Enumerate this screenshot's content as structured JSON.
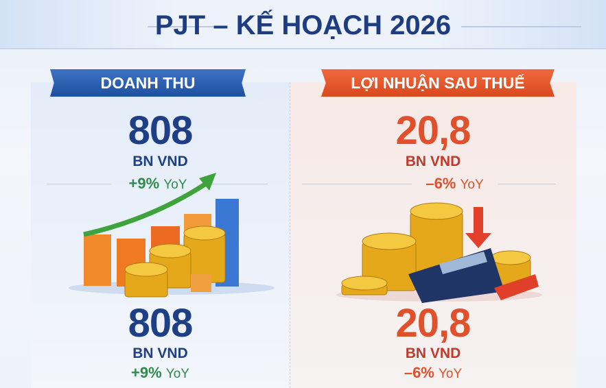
{
  "title": "PJT – KẾ HOẠCH 2026",
  "revenue": {
    "label": "DOANH THU",
    "value": "808",
    "unit": "BN VND",
    "change": "+9%",
    "change_suffix": "YoY",
    "color": "#1e3f86",
    "change_color": "#2f8a4d",
    "icon": "rising-bar-chart-coins"
  },
  "profit": {
    "label": "LỢI NHUẬN SAU THUẾ",
    "value": "20,8",
    "unit": "BN VND",
    "change": "–6%",
    "change_suffix": "YoY",
    "color": "#e0512b",
    "change_color": "#e0512b",
    "icon": "calculator-coins-down-arrow"
  },
  "colors": {
    "brand_blue": "#1e3c82",
    "accent_orange": "#e0512b"
  }
}
